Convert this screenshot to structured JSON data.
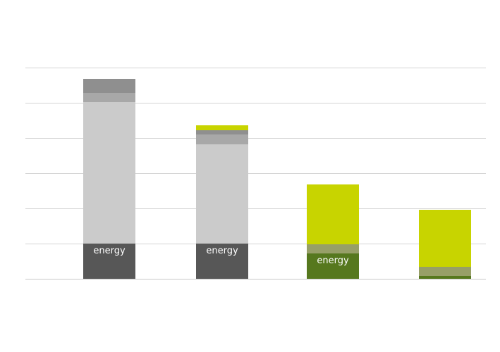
{
  "chart_data": {
    "type": "bar",
    "stacked": true,
    "categories": [
      "",
      "",
      "",
      ""
    ],
    "ylim": [
      0,
      6
    ],
    "grid": true,
    "title": "",
    "xlabel": "",
    "ylabel": "",
    "series": [
      {
        "values": [
          1.0,
          1.0,
          0.72,
          0.06
        ],
        "color": "#575757",
        "label": "energy"
      },
      {
        "values": [
          0,
          0,
          0,
          0.02
        ],
        "color": "#56781e",
        "label": ""
      },
      {
        "values": [
          0,
          0,
          0.26,
          0.26
        ],
        "color": "#979f68",
        "label": ""
      },
      {
        "values": [
          4.02,
          2.82,
          0,
          0
        ],
        "color": "#cbcbcb",
        "label": ""
      },
      {
        "values": [
          0.26,
          0.28,
          0,
          0
        ],
        "color": "#a8a8a8",
        "label": ""
      },
      {
        "values": [
          0.4,
          0.12,
          0,
          0
        ],
        "color": "#8f8f8f",
        "label": ""
      },
      {
        "values": [
          0,
          0.14,
          1.7,
          1.62
        ],
        "color": "#c8d400",
        "label": ""
      }
    ],
    "segment_labels": [
      {
        "bar": 0,
        "series": 0,
        "text": "energy"
      },
      {
        "bar": 1,
        "series": 0,
        "text": "energy"
      },
      {
        "bar": 2,
        "series": 0,
        "text": "energy"
      }
    ]
  }
}
